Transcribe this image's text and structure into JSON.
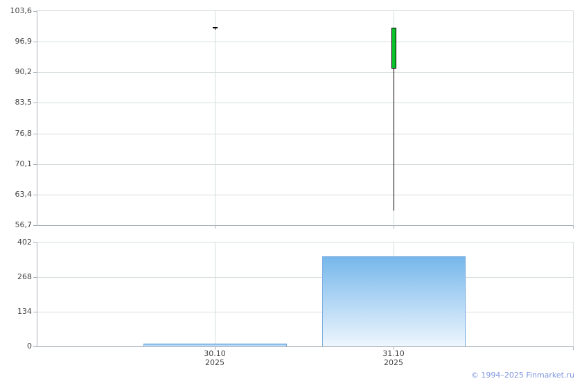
{
  "footer": {
    "copyright": "© 1994–2025 Finmarket.ru"
  },
  "colors": {
    "background": "#ffffff",
    "grid": "#d6dddc",
    "axis": "#a9b0b8",
    "label_text": "#3f3f3f",
    "candle_up_fill": "#0cc029",
    "candle_outline": "#000000",
    "volume_top": "#76b7eb",
    "volume_bottom": "#eef6fd",
    "volume_border": "#7aade0",
    "footer_link": "#7d96dd"
  },
  "chart_data": [
    {
      "type": "candlestick",
      "panel": "price",
      "categories": [
        "30.10.2025",
        "31.10.2025"
      ],
      "series": [
        {
          "name": "price-ohlc",
          "values": [
            {
              "open": 100.0,
              "high": 100.0,
              "low": 99.5,
              "close": 100.0
            },
            {
              "open": 91.0,
              "high": 100.0,
              "low": 60.0,
              "close": 100.0
            }
          ]
        }
      ],
      "ylim": [
        56.7,
        103.6
      ],
      "yticks": [
        {
          "label": "103,6",
          "value": 103.6
        },
        {
          "label": "96,9",
          "value": 96.9
        },
        {
          "label": "90,2",
          "value": 90.2
        },
        {
          "label": "83,5",
          "value": 83.5
        },
        {
          "label": "76,8",
          "value": 76.8
        },
        {
          "label": "70,1",
          "value": 70.1
        },
        {
          "label": "63,4",
          "value": 63.4
        },
        {
          "label": "56,7",
          "value": 56.7
        }
      ],
      "grid": true,
      "legend": "none"
    },
    {
      "type": "bar",
      "panel": "volume",
      "categories": [
        "30.10.2025",
        "31.10.2025"
      ],
      "values": [
        10,
        348
      ],
      "ylim": [
        0,
        402
      ],
      "yticks": [
        {
          "label": "402",
          "value": 402
        },
        {
          "label": "268",
          "value": 268
        },
        {
          "label": "134",
          "value": 134
        },
        {
          "label": "0",
          "value": 0
        }
      ],
      "grid": true,
      "legend": "none"
    }
  ],
  "x_axis": {
    "labels": [
      {
        "line1": "30.10",
        "line2": "2025"
      },
      {
        "line1": "31.10",
        "line2": "2025"
      }
    ]
  }
}
